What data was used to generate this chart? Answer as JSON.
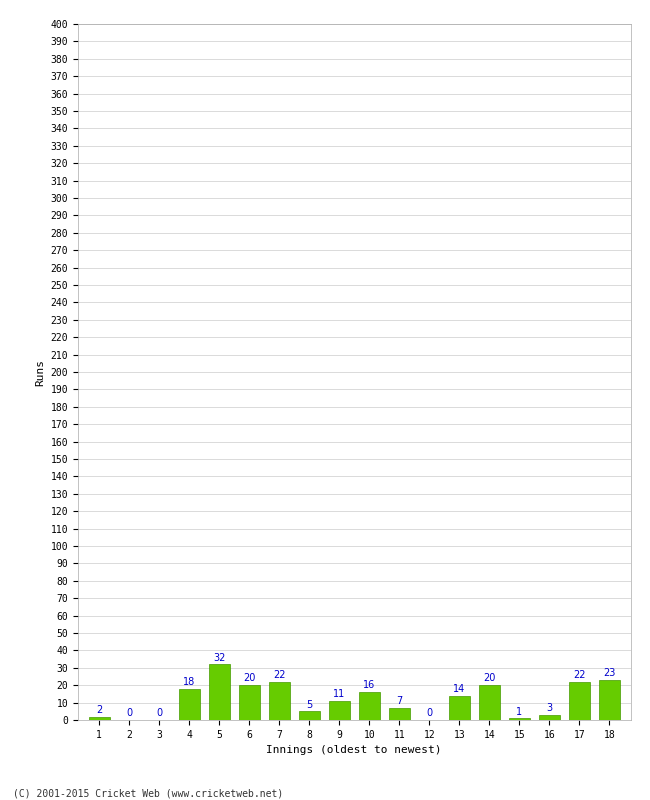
{
  "title": "",
  "xlabel": "Innings (oldest to newest)",
  "ylabel": "Runs",
  "categories": [
    1,
    2,
    3,
    4,
    5,
    6,
    7,
    8,
    9,
    10,
    11,
    12,
    13,
    14,
    15,
    16,
    17,
    18
  ],
  "values": [
    2,
    0,
    0,
    18,
    32,
    20,
    22,
    5,
    11,
    16,
    7,
    0,
    14,
    20,
    1,
    3,
    22,
    23
  ],
  "bar_color": "#66cc00",
  "bar_edge_color": "#449900",
  "label_color": "#0000cc",
  "ylim": [
    0,
    400
  ],
  "ytick_step": 10,
  "background_color": "#ffffff",
  "grid_color": "#cccccc",
  "footer": "(C) 2001-2015 Cricket Web (www.cricketweb.net)"
}
